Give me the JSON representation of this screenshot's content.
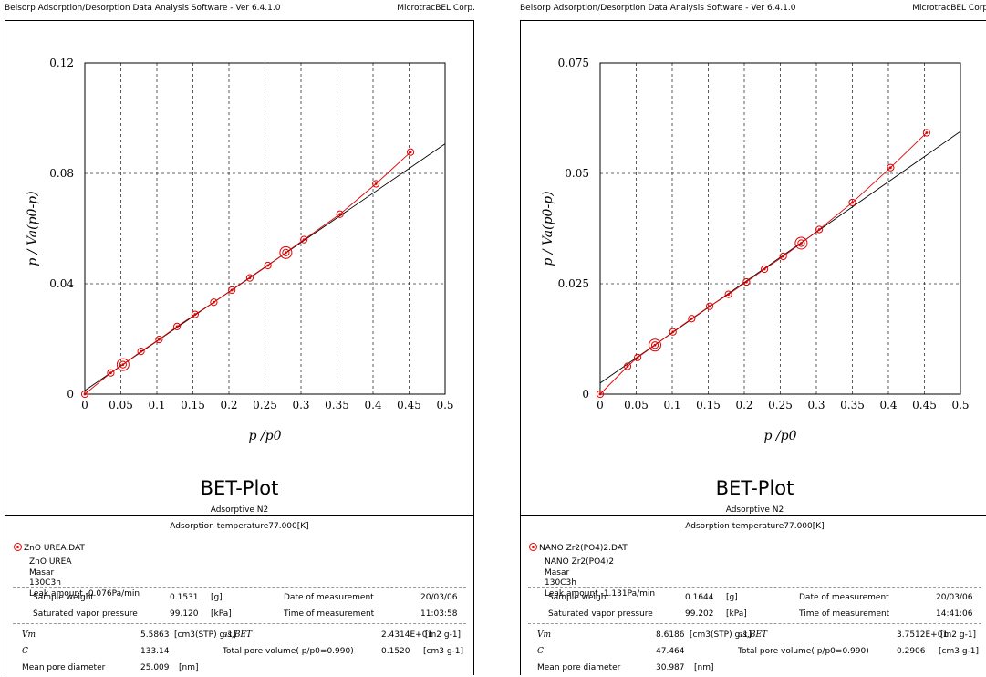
{
  "panels": [
    {
      "app_title": "Belsorp Adsorption/Desorption Data Analysis Software - Ver 6.4.1.0",
      "company": "MicrotracBEL Corp.",
      "plot_title": "BET-Plot",
      "adsorptive": "Adsorptive N2",
      "temperature": "Adsorption temperature77.000[K]",
      "file_name": "ZnO UREA.DAT",
      "sample_lines": [
        "ZnO UREA",
        "Masar",
        "130C3h",
        "Leak amount -0.076Pa/min"
      ],
      "sample_weight_label": "Sample weight",
      "sample_weight": "0.1531",
      "sample_weight_unit": "[g]",
      "date_label": "Date of measurement",
      "date": "20/03/06",
      "svp_label": "Saturated vapor pressure",
      "svp": "99.120",
      "svp_unit": "[kPa]",
      "time_label": "Time of measurement",
      "time": "11:03:58",
      "vm_label": "Vm",
      "vm": "5.5863",
      "vm_unit": "[cm3(STP) g-1]",
      "as_label": "as,BET",
      "as": "2.4314E+01",
      "as_unit": "[m2 g-1]",
      "c_label": "C",
      "c": "133.14",
      "tpv_label": "Total pore volume( p/p0=0.990)",
      "tpv": "0.1520",
      "tpv_unit": "[cm3 g-1]",
      "mpd_label": "Mean pore diameter",
      "mpd": "25.009",
      "mpd_unit": "[nm]",
      "chart_data": {
        "type": "scatter",
        "xlabel": "p /p0",
        "ylabel": "p / Va(p0-p)",
        "xlim": [
          0,
          0.5
        ],
        "ylim": [
          0,
          0.12
        ],
        "x_ticks": [
          "0",
          "0.05",
          "0.1",
          "0.15",
          "0.2",
          "0.25",
          "0.3",
          "0.35",
          "0.4",
          "0.45",
          "0.5"
        ],
        "y_ticks": [
          "0",
          "0.04",
          "0.08",
          "0.12"
        ],
        "grid": true,
        "x": [
          0.0,
          0.036,
          0.053,
          0.078,
          0.103,
          0.128,
          0.153,
          0.179,
          0.204,
          0.229,
          0.254,
          0.279,
          0.304,
          0.354,
          0.404,
          0.452
        ],
        "y": [
          0.0,
          0.0077,
          0.0107,
          0.0155,
          0.0198,
          0.0245,
          0.0289,
          0.0333,
          0.0377,
          0.0421,
          0.0466,
          0.0513,
          0.056,
          0.0652,
          0.0762,
          0.0877
        ],
        "highlight_x": [
          0.053,
          0.279
        ],
        "fit_line": {
          "x": [
            0,
            0.5
          ],
          "y": [
            0.0013,
            0.0907
          ]
        },
        "colors": {
          "points": "#e00000",
          "fit": "#000000"
        }
      }
    },
    {
      "app_title": "Belsorp Adsorption/Desorption Data Analysis Software - Ver 6.4.1.0",
      "company": "MicrotracBEL Corp.",
      "plot_title": "BET-Plot",
      "adsorptive": "Adsorptive N2",
      "temperature": "Adsorption temperature77.000[K]",
      "file_name": "NANO Zr2(PO4)2.DAT",
      "sample_lines": [
        "NANO Zr2(PO4)2",
        "Masar",
        "130C3h",
        "Leak amount -1.131Pa/min"
      ],
      "sample_weight_label": "Sample weight",
      "sample_weight": "0.1644",
      "sample_weight_unit": "[g]",
      "date_label": "Date of measurement",
      "date": "20/03/06",
      "svp_label": "Saturated vapor pressure",
      "svp": "99.202",
      "svp_unit": "[kPa]",
      "time_label": "Time of measurement",
      "time": "14:41:06",
      "vm_label": "Vm",
      "vm": "8.6186",
      "vm_unit": "[cm3(STP) g-1]",
      "as_label": "as,BET",
      "as": "3.7512E+01",
      "as_unit": "[m2 g-1]",
      "c_label": "C",
      "c": "47.464",
      "tpv_label": "Total pore volume( p/p0=0.990)",
      "tpv": "0.2906",
      "tpv_unit": "[cm3 g-1]",
      "mpd_label": "Mean pore diameter",
      "mpd": "30.987",
      "mpd_unit": "[nm]",
      "chart_data": {
        "type": "scatter",
        "xlabel": "p /p0",
        "ylabel": "p / Va(p0-p)",
        "xlim": [
          0,
          0.5
        ],
        "ylim": [
          0,
          0.075
        ],
        "x_ticks": [
          "0",
          "0.05",
          "0.1",
          "0.15",
          "0.2",
          "0.25",
          "0.3",
          "0.35",
          "0.4",
          "0.45",
          "0.5"
        ],
        "y_ticks": [
          "0",
          "0.025",
          "0.05",
          "0.075"
        ],
        "grid": true,
        "x": [
          0.0,
          0.038,
          0.052,
          0.076,
          0.101,
          0.127,
          0.152,
          0.178,
          0.203,
          0.228,
          0.254,
          0.279,
          0.304,
          0.35,
          0.403,
          0.453
        ],
        "y": [
          0.0,
          0.0063,
          0.0083,
          0.0111,
          0.0141,
          0.0171,
          0.0199,
          0.0226,
          0.0254,
          0.0283,
          0.0312,
          0.0342,
          0.0373,
          0.0434,
          0.0513,
          0.0592
        ],
        "highlight_x": [
          0.076,
          0.279
        ],
        "fit_line": {
          "x": [
            0,
            0.5
          ],
          "y": [
            0.0025,
            0.0595
          ]
        },
        "colors": {
          "points": "#e00000",
          "fit": "#000000"
        }
      }
    }
  ]
}
